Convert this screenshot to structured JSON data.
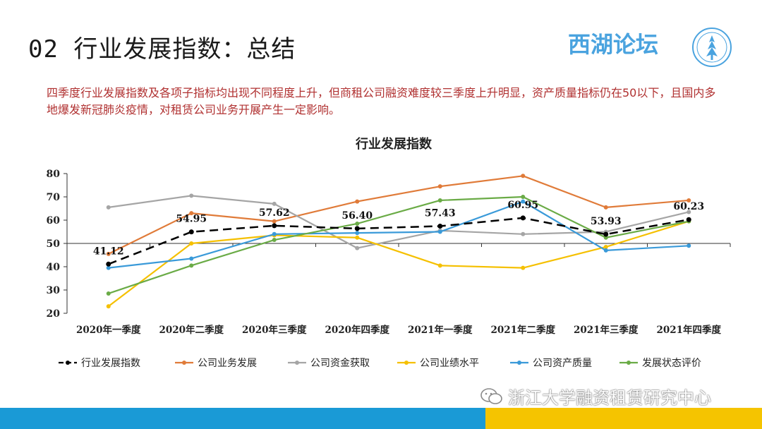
{
  "header": {
    "title": "02 行业发展指数：总结",
    "brand": "西湖论坛"
  },
  "summary": "四季度行业发展指数及各项子指标均出现不同程度上升，但商租公司融资难度较三季度上升明显，资产质量指标仍在50以下，且国内多地爆发新冠肺炎疫情，对租赁公司业务开展产生一定影响。",
  "watermark": "浙江大学融资租赁研究中心",
  "colors": {
    "accent_blue": "#1a9ad6",
    "accent_yellow": "#f5c400",
    "summary_red": "#b03030"
  },
  "chart_data": {
    "type": "line",
    "title": "行业发展指数",
    "xlabel": "",
    "ylabel": "",
    "ylim": [
      20,
      80
    ],
    "yticks": [
      20,
      30,
      40,
      50,
      60,
      70,
      80
    ],
    "grid": false,
    "legend_position": "bottom",
    "categories": [
      "2020年一季度",
      "2020年二季度",
      "2020年三季度",
      "2020年四季度",
      "2021年一季度",
      "2021年二季度",
      "2021年三季度",
      "2021年四季度"
    ],
    "series": [
      {
        "name": "行业发展指数",
        "color": "#000000",
        "dashed": true,
        "marker": true,
        "values": [
          41.12,
          54.95,
          57.62,
          56.4,
          57.43,
          60.95,
          53.93,
          60.23
        ],
        "labels": [
          "41.12",
          "54.95",
          "57.62",
          "56.40",
          "57.43",
          "60.95",
          "53.93",
          "60.23"
        ]
      },
      {
        "name": "公司业务发展",
        "color": "#e07b39",
        "values": [
          45.5,
          63,
          59.5,
          68,
          74.5,
          79,
          65.5,
          68.5
        ]
      },
      {
        "name": "公司资金获取",
        "color": "#a5a5a5",
        "values": [
          65.5,
          70.5,
          67,
          48,
          55.5,
          54,
          55,
          63.5
        ]
      },
      {
        "name": "公司业绩水平",
        "color": "#f5c000",
        "values": [
          23,
          50,
          53.5,
          52.5,
          40.5,
          39.5,
          48.5,
          59.5
        ]
      },
      {
        "name": "公司资产质量",
        "color": "#3a9ad9",
        "values": [
          39.5,
          43.5,
          54,
          54.5,
          55,
          68,
          47,
          49
        ]
      },
      {
        "name": "发展状态评价",
        "color": "#6aab46",
        "values": [
          28.5,
          40.5,
          51.5,
          58.5,
          68.5,
          70,
          52.5,
          59.5
        ]
      }
    ]
  }
}
